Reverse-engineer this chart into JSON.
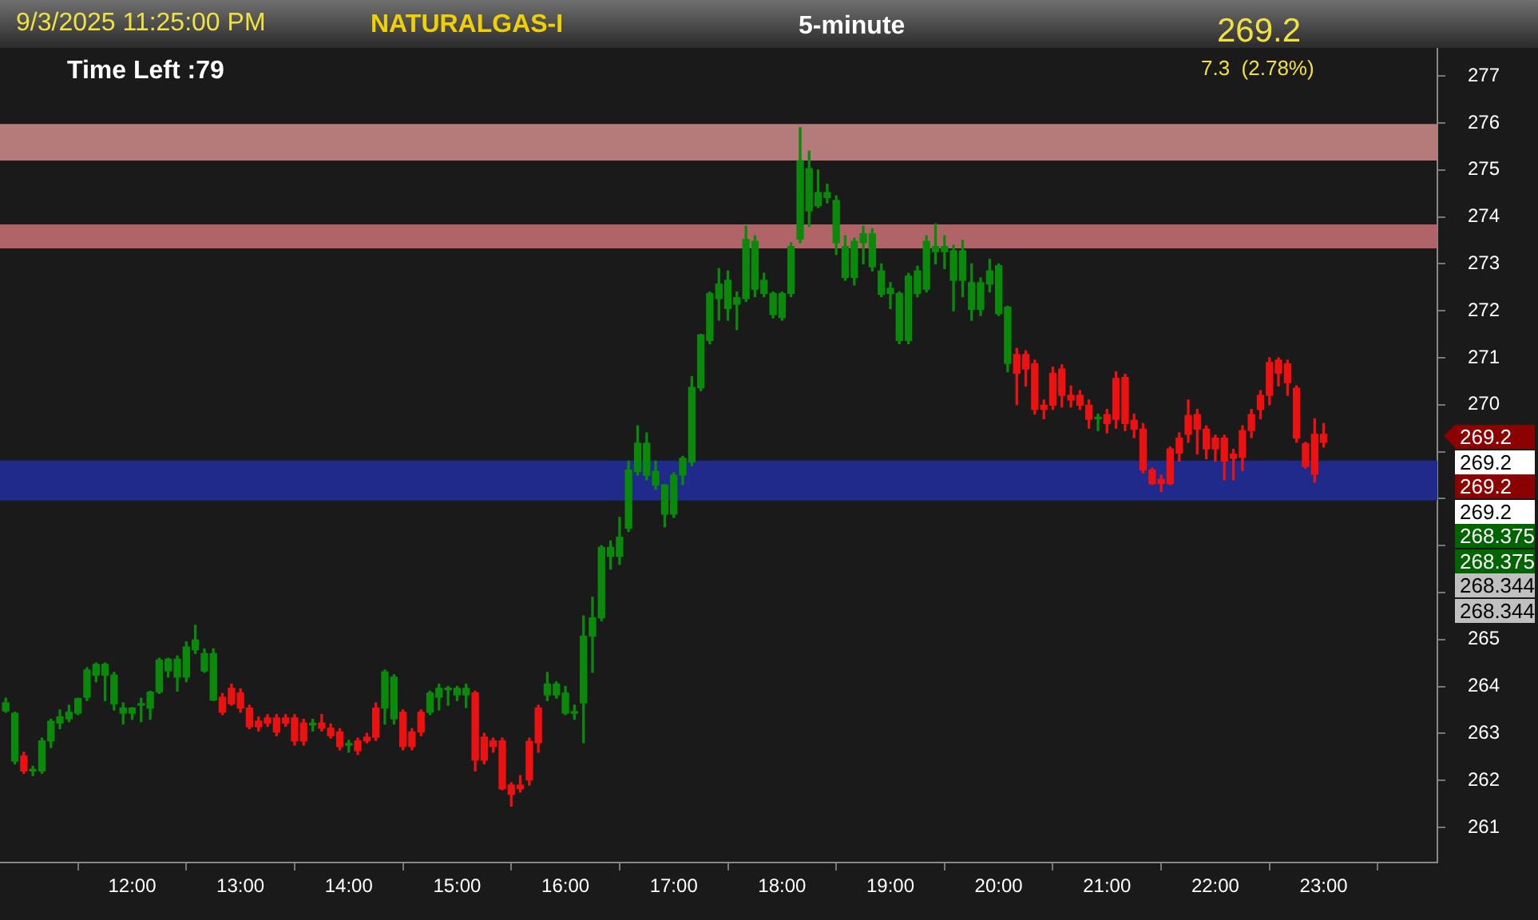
{
  "chart_data": {
    "type": "candlestick",
    "title": "NATURALGAS-I",
    "subtitle": "5-minute",
    "annotations": [
      "9/3/2025 11:25:00 PM",
      "269.2",
      "7.3  (2.78%)",
      "Time Left :79",
      "269.2",
      "269.2",
      "269.2",
      "269.2",
      "268.375",
      "268.375",
      "268.344",
      "268.344"
    ],
    "x": [
      10.833,
      10.917,
      11,
      11.083,
      11.167,
      11.25,
      11.333,
      11.417,
      11.5,
      11.583,
      11.667,
      11.75,
      11.833,
      11.917,
      12,
      12.083,
      12.167,
      12.25,
      12.333,
      12.417,
      12.5,
      12.583,
      12.667,
      12.75,
      12.833,
      12.917,
      13,
      13.083,
      13.167,
      13.25,
      13.333,
      13.417,
      13.5,
      13.583,
      13.667,
      13.75,
      13.833,
      13.917,
      14,
      14.083,
      14.167,
      14.25,
      14.333,
      14.417,
      14.5,
      14.583,
      14.667,
      14.75,
      14.833,
      14.917,
      15,
      15.083,
      15.167,
      15.25,
      15.333,
      15.417,
      15.5,
      15.583,
      15.667,
      15.75,
      15.833,
      15.917,
      16,
      16.083,
      16.167,
      16.25,
      16.333,
      16.417,
      16.5,
      16.583,
      16.667,
      16.75,
      16.833,
      16.917,
      17,
      17.083,
      17.167,
      17.25,
      17.333,
      17.417,
      17.5,
      17.583,
      17.667,
      17.75,
      17.833,
      17.917,
      18,
      18.083,
      18.167,
      18.25,
      18.333,
      18.417,
      18.5,
      18.583,
      18.667,
      18.75,
      18.833,
      18.917,
      19,
      19.083,
      19.167,
      19.25,
      19.333,
      19.417,
      19.5,
      19.583,
      19.667,
      19.75,
      19.833,
      19.917,
      20,
      20.083,
      20.167,
      20.25,
      20.333,
      20.417,
      20.5,
      20.583,
      20.667,
      20.75,
      20.833,
      20.917,
      21,
      21.083,
      21.167,
      21.25,
      21.333,
      21.417,
      21.5,
      21.583,
      21.667,
      21.75,
      21.833,
      21.917,
      22,
      22.083,
      22.167,
      22.25,
      22.333,
      22.417,
      22.5,
      22.583,
      22.667,
      22.75,
      22.833,
      22.917,
      23
    ],
    "ohlc": [
      [
        263.48,
        263.75,
        263.45,
        263.65
      ],
      [
        262.41,
        263.45,
        262.35,
        263.43
      ],
      [
        262.52,
        262.6,
        262.15,
        262.2
      ],
      [
        262.2,
        262.3,
        262.1,
        262.2
      ],
      [
        262.2,
        262.9,
        262.15,
        262.84
      ],
      [
        262.84,
        263.3,
        262.7,
        263.26
      ],
      [
        263.22,
        263.5,
        263.1,
        263.35
      ],
      [
        263.31,
        263.6,
        263.25,
        263.45
      ],
      [
        263.43,
        263.75,
        263.4,
        263.74
      ],
      [
        263.77,
        264.4,
        263.7,
        264.35
      ],
      [
        264.24,
        264.5,
        264.1,
        264.47
      ],
      [
        264.24,
        264.5,
        263.7,
        264.47
      ],
      [
        263.63,
        264.3,
        263.5,
        264.24
      ],
      [
        263.43,
        263.65,
        263.2,
        263.54
      ],
      [
        263.43,
        263.55,
        263.3,
        263.54
      ],
      [
        263.6,
        263.75,
        263.25,
        263.6
      ],
      [
        263.54,
        263.9,
        263.3,
        263.88
      ],
      [
        263.88,
        264.6,
        263.85,
        264.56
      ],
      [
        264.33,
        264.6,
        264.2,
        264.58
      ],
      [
        264.2,
        264.65,
        263.9,
        264.58
      ],
      [
        264.2,
        264.95,
        264.1,
        264.84
      ],
      [
        264.78,
        265.3,
        264.7,
        264.99
      ],
      [
        264.33,
        264.8,
        264.3,
        264.7
      ],
      [
        263.71,
        264.8,
        263.7,
        264.7
      ],
      [
        263.77,
        263.85,
        263.4,
        263.45
      ],
      [
        263.96,
        264.05,
        263.6,
        263.63
      ],
      [
        263.86,
        263.95,
        263.45,
        263.54
      ],
      [
        263.54,
        263.6,
        263.1,
        263.14
      ],
      [
        263.26,
        263.35,
        263.05,
        263.14
      ],
      [
        263.33,
        263.4,
        263.15,
        263.22
      ],
      [
        263.33,
        263.4,
        262.95,
        263.03
      ],
      [
        263.33,
        263.4,
        263.15,
        263.22
      ],
      [
        263.33,
        263.4,
        262.75,
        262.84
      ],
      [
        263.22,
        263.3,
        262.75,
        262.84
      ],
      [
        263.18,
        263.3,
        263.05,
        263.18
      ],
      [
        263.22,
        263.4,
        263.05,
        263.11
      ],
      [
        263.11,
        263.2,
        262.9,
        262.95
      ],
      [
        263.03,
        263.1,
        262.65,
        262.72
      ],
      [
        262.75,
        262.85,
        262.6,
        262.75
      ],
      [
        262.84,
        262.9,
        262.55,
        262.63
      ],
      [
        262.92,
        263,
        262.8,
        262.84
      ],
      [
        263.54,
        263.65,
        262.85,
        262.92
      ],
      [
        263.54,
        264.35,
        263.2,
        264.31
      ],
      [
        263.31,
        264.25,
        263.2,
        264.2
      ],
      [
        263.45,
        263.5,
        262.65,
        262.72
      ],
      [
        263.03,
        263.1,
        262.65,
        262.72
      ],
      [
        263.45,
        263.5,
        262.95,
        263.03
      ],
      [
        263.45,
        263.9,
        263.4,
        263.86
      ],
      [
        263.77,
        264.05,
        263.5,
        263.96
      ],
      [
        263.93,
        264,
        263.6,
        263.93
      ],
      [
        263.82,
        264,
        263.7,
        263.96
      ],
      [
        263.82,
        264.05,
        263.55,
        263.96
      ],
      [
        263.86,
        263.9,
        262.2,
        262.43
      ],
      [
        262.92,
        263,
        262.35,
        262.43
      ],
      [
        262.84,
        262.9,
        262.6,
        262.72
      ],
      [
        262.84,
        262.9,
        261.8,
        261.82
      ],
      [
        261.9,
        261.95,
        261.45,
        261.7
      ],
      [
        261.9,
        262.1,
        261.75,
        261.82
      ],
      [
        262.83,
        262.9,
        261.9,
        262.01
      ],
      [
        263.54,
        263.6,
        262.6,
        262.8
      ],
      [
        263.82,
        264.3,
        263.7,
        264.05
      ],
      [
        263.82,
        264.1,
        263.75,
        264.05
      ],
      [
        263.43,
        264,
        263.4,
        263.86
      ],
      [
        263.43,
        263.6,
        263.3,
        263.43
      ],
      [
        263.65,
        265.5,
        262.8,
        265.07
      ],
      [
        265.07,
        265.9,
        264.3,
        265.46
      ],
      [
        265.46,
        267,
        265.4,
        266.96
      ],
      [
        266.77,
        267.1,
        266.5,
        266.96
      ],
      [
        266.77,
        267.6,
        266.6,
        267.18
      ],
      [
        267.37,
        268.8,
        267.3,
        268.61
      ],
      [
        268.58,
        269.55,
        268.5,
        269.18
      ],
      [
        268.5,
        269.4,
        268.4,
        269.18
      ],
      [
        268.29,
        268.8,
        268.2,
        268.58
      ],
      [
        267.67,
        268.3,
        267.4,
        268.29
      ],
      [
        267.67,
        268.55,
        267.6,
        268.5
      ],
      [
        268.5,
        268.9,
        268.3,
        268.86
      ],
      [
        268.78,
        270.6,
        268.7,
        270.37
      ],
      [
        270.36,
        271.5,
        270.3,
        271.49
      ],
      [
        271.37,
        272.4,
        271.3,
        272.37
      ],
      [
        272.26,
        272.9,
        271.8,
        272.57
      ],
      [
        272.05,
        272.85,
        271.8,
        272.65
      ],
      [
        272.14,
        272.4,
        271.6,
        272.28
      ],
      [
        272.26,
        273.8,
        272.2,
        273.52
      ],
      [
        272.46,
        273.6,
        272.3,
        273.48
      ],
      [
        272.37,
        272.8,
        272.3,
        272.65
      ],
      [
        271.92,
        272.4,
        271.85,
        272.37
      ],
      [
        271.86,
        272.4,
        271.8,
        272.37
      ],
      [
        272.37,
        273.45,
        272.3,
        273.37
      ],
      [
        273.53,
        275.9,
        273.45,
        275.2
      ],
      [
        274.13,
        275.4,
        273.8,
        275.03
      ],
      [
        274.24,
        275,
        274.2,
        274.52
      ],
      [
        274.41,
        274.7,
        274.3,
        274.52
      ],
      [
        273.45,
        274.45,
        273.2,
        274.35
      ],
      [
        272.71,
        273.6,
        272.65,
        273.37
      ],
      [
        272.71,
        273.55,
        272.55,
        273.48
      ],
      [
        273.45,
        273.8,
        273,
        273.64
      ],
      [
        272.94,
        273.75,
        272.85,
        273.64
      ],
      [
        272.35,
        273,
        272.3,
        272.85
      ],
      [
        272.37,
        272.6,
        272.05,
        272.48
      ],
      [
        271.37,
        272.4,
        271.3,
        272.37
      ],
      [
        271.37,
        272.8,
        271.3,
        272.74
      ],
      [
        272.37,
        272.95,
        272.3,
        272.85
      ],
      [
        272.46,
        273.6,
        272.4,
        273.48
      ],
      [
        273.26,
        273.85,
        273,
        273.37
      ],
      [
        273.26,
        273.6,
        272.9,
        273.37
      ],
      [
        272.65,
        273.4,
        272,
        273.28
      ],
      [
        272.65,
        273.5,
        272.3,
        273.28
      ],
      [
        272.03,
        273,
        271.8,
        272.6
      ],
      [
        272.03,
        272.7,
        271.9,
        272.6
      ],
      [
        272.57,
        273.1,
        272.4,
        272.85
      ],
      [
        271.94,
        273,
        271.9,
        272.96
      ],
      [
        270.88,
        272.1,
        270.7,
        272.08
      ],
      [
        271.07,
        271.2,
        270,
        270.67
      ],
      [
        271.07,
        271.15,
        270.4,
        270.76
      ],
      [
        270.87,
        270.95,
        269.8,
        269.9
      ],
      [
        269.99,
        270.1,
        269.7,
        269.9
      ],
      [
        270.67,
        270.8,
        269.9,
        269.99
      ],
      [
        270.76,
        270.85,
        269.95,
        270.2
      ],
      [
        270.2,
        270.4,
        269.95,
        270.1
      ],
      [
        270.2,
        270.3,
        269.9,
        269.99
      ],
      [
        269.99,
        270.1,
        269.5,
        269.69
      ],
      [
        269.7,
        269.8,
        269.45,
        269.7
      ],
      [
        269.79,
        269.9,
        269.4,
        269.6
      ],
      [
        270.56,
        270.7,
        269.5,
        269.69
      ],
      [
        270.58,
        270.65,
        269.45,
        269.6
      ],
      [
        269.67,
        269.8,
        269.3,
        269.48
      ],
      [
        269.48,
        269.6,
        268.55,
        268.61
      ],
      [
        268.61,
        268.65,
        268.3,
        268.32
      ],
      [
        268.41,
        268.5,
        268.15,
        268.32
      ],
      [
        269.06,
        269.1,
        268.3,
        268.32
      ],
      [
        269.29,
        269.4,
        268.8,
        268.97
      ],
      [
        269.77,
        270.1,
        269.2,
        269.37
      ],
      [
        269.79,
        269.9,
        268.95,
        269.48
      ],
      [
        269.48,
        269.55,
        268.85,
        269.06
      ],
      [
        269.29,
        269.35,
        268.8,
        269.06
      ],
      [
        269.29,
        269.35,
        268.4,
        268.8
      ],
      [
        268.95,
        269.05,
        268.4,
        268.86
      ],
      [
        269.45,
        269.55,
        268.6,
        268.88
      ],
      [
        269.79,
        269.9,
        269.3,
        269.45
      ],
      [
        270.2,
        270.3,
        269.7,
        269.9
      ],
      [
        270.9,
        271,
        270,
        270.2
      ],
      [
        270.95,
        271,
        270.4,
        270.67
      ],
      [
        270.87,
        270.95,
        270.2,
        270.47
      ],
      [
        270.35,
        270.4,
        269.2,
        269.29
      ],
      [
        269.17,
        269.2,
        268.65,
        268.69
      ],
      [
        269.37,
        269.7,
        268.35,
        268.52
      ],
      [
        269.37,
        269.6,
        269.1,
        269.2
      ]
    ],
    "xlim": [
      10.78,
      24.05
    ],
    "xticks": [
      {
        "value": 12,
        "label": "12:00"
      },
      {
        "value": 13,
        "label": "13:00"
      },
      {
        "value": 14,
        "label": "14:00"
      },
      {
        "value": 15,
        "label": "15:00"
      },
      {
        "value": 16,
        "label": "16:00"
      },
      {
        "value": 17,
        "label": "17:00"
      },
      {
        "value": 18,
        "label": "18:00"
      },
      {
        "value": 19,
        "label": "19:00"
      },
      {
        "value": 20,
        "label": "20:00"
      },
      {
        "value": 21,
        "label": "21:00"
      },
      {
        "value": 22,
        "label": "22:00"
      },
      {
        "value": 23,
        "label": "23:00"
      }
    ],
    "ylim": [
      260.25,
      277.6
    ],
    "yticks": [
      261,
      262,
      263,
      264,
      265,
      {
        "value": 266,
        "label": null
      },
      {
        "value": 267,
        "label": null
      },
      {
        "value": 268,
        "label": null
      },
      {
        "value": 269,
        "label": null
      },
      270,
      271,
      272,
      273,
      274,
      275,
      276,
      277
    ],
    "bands": [
      {
        "axis": "y",
        "from": 275.2,
        "to": 275.98,
        "color": "#b57a7a"
      },
      {
        "axis": "y",
        "from": 273.33,
        "to": 273.84,
        "color": "#b06468"
      },
      {
        "axis": "y",
        "from": 267.96,
        "to": 268.81,
        "color": "#1f2a8a"
      }
    ],
    "grid": false,
    "legend": false
  }
}
